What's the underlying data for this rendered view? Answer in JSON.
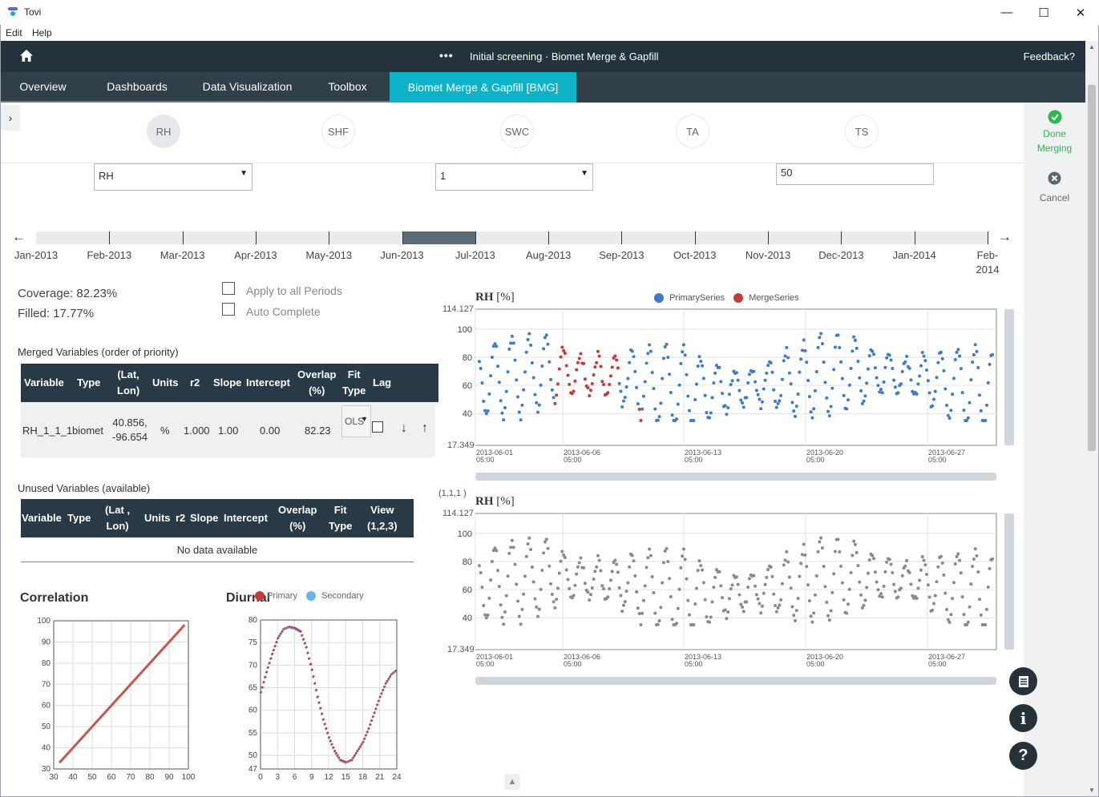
{
  "window": {
    "title": "Tovi",
    "minimize": "—",
    "maximize": "☐",
    "close": "✕"
  },
  "menu": {
    "items": [
      "Edit",
      "Help"
    ]
  },
  "topbar": {
    "dots": "•••",
    "title": "Initial screening · Biomet Merge & Gapfill",
    "feedback": "Feedback?"
  },
  "tabs": [
    "Overview",
    "Dashboards",
    "Data Visualization",
    "Toolbox",
    "Biomet Merge & Gapfill [BMG]"
  ],
  "active_tab": "Biomet Merge & Gapfill [BMG]",
  "variables": [
    "RH",
    "SHF",
    "SWC",
    "TA",
    "TS"
  ],
  "active_variable": "RH",
  "controls": {
    "variable_select": "RH",
    "period_select": "1",
    "window_input": "50"
  },
  "right_panel": {
    "done": "Done Merging",
    "cancel": "Cancel"
  },
  "timeline": {
    "months": [
      "Jan-2013",
      "Feb-2013",
      "Mar-2013",
      "Apr-2013",
      "May-2013",
      "Jun-2013",
      "Jul-2013",
      "Aug-2013",
      "Sep-2013",
      "Oct-2013",
      "Nov-2013",
      "Dec-2013",
      "Jan-2014",
      "Feb-\n2014"
    ],
    "selected": "Jun-2013"
  },
  "stats": {
    "coverage": "Coverage: 82.23%",
    "filled": "Filled: 17.77%"
  },
  "options": {
    "apply_all": "Apply to all Periods",
    "auto_complete": "Auto Complete"
  },
  "merged": {
    "title": "Merged Variables (order of priority)",
    "headers": [
      "Variable",
      "Type",
      "(Lat,\nLon)",
      "Units",
      "r2",
      "Slope",
      "Intercept",
      "Overlap\n(%)",
      "Fit\nType",
      "Lag"
    ],
    "row": {
      "variable": "RH_1_1_1",
      "type": "biomet",
      "latlon": "40.856,\n-96.654",
      "units": "%",
      "r2": "1.000",
      "slope": "1.00",
      "intercept": "0.00",
      "overlap": "82.23",
      "fit": "OLS"
    }
  },
  "unused": {
    "title": "Unused Variables (available)",
    "headers": [
      "Variable",
      "Type",
      "(Lat ,\nLon)",
      "Units",
      "r2",
      "Slope",
      "Intercept",
      "Overlap\n(%)",
      "Fit\nType",
      "View\n(1,2,3)"
    ],
    "empty": "No data available"
  },
  "correlation": {
    "title": "Correlation"
  },
  "diurnal": {
    "title": "Diurnal",
    "legend_primary": "Primary",
    "legend_secondary": "Secondary"
  },
  "ts_chart1": {
    "title": "RH",
    "unit": "[%]",
    "legend": [
      "PrimarySeries",
      "MergeSeries"
    ],
    "ymax": "114.127",
    "ymin": "17.349"
  },
  "ts_chart2": {
    "title": "RH",
    "unit": "[%]",
    "label": "(1,1,1 )",
    "ymax": "114.127",
    "ymin": "17.349"
  },
  "colors": {
    "primary": "#3d7cc9",
    "merge": "#c43b3b",
    "gray": "#8a8a8a",
    "accent": "#0fb3c9",
    "dark": "#25323b"
  },
  "chart_data": [
    {
      "type": "scatter",
      "title": "RH [%]",
      "ylim": [
        17.349,
        114.127
      ],
      "yticks": [
        40,
        60,
        80,
        100
      ],
      "xticks": [
        "2013-06-01\n05:00",
        "2013-06-06\n05:00",
        "2013-06-13\n05:00",
        "2013-06-20\n05:00",
        "2013-06-27\n05:00"
      ],
      "series": [
        {
          "name": "PrimarySeries",
          "color": "#3d7cc9"
        },
        {
          "name": "MergeSeries",
          "color": "#c43b3b"
        }
      ]
    },
    {
      "type": "scatter",
      "title": "RH [%]",
      "ylim": [
        17.349,
        114.127
      ],
      "yticks": [
        40,
        60,
        80,
        100
      ],
      "xticks": [
        "2013-06-01\n05:00",
        "2013-06-06\n05:00",
        "2013-06-13\n05:00",
        "2013-06-20\n05:00",
        "2013-06-27\n05:00"
      ]
    },
    {
      "type": "line",
      "title": "Correlation",
      "xlim": [
        30,
        100
      ],
      "ylim": [
        30,
        100
      ],
      "xticks": [
        30,
        40,
        50,
        60,
        70,
        80,
        90,
        100
      ],
      "yticks": [
        30,
        40,
        50,
        60,
        70,
        80,
        90,
        100
      ],
      "x": [
        33,
        98
      ],
      "y": [
        33,
        98
      ]
    },
    {
      "type": "scatter",
      "title": "Diurnal",
      "xlim": [
        0,
        24
      ],
      "ylim": [
        47,
        80
      ],
      "xticks": [
        0,
        3,
        6,
        9,
        12,
        15,
        18,
        21,
        24
      ],
      "yticks": [
        47,
        50,
        55,
        60,
        65,
        70,
        75,
        80
      ],
      "x": [
        0,
        1,
        2,
        3,
        4,
        5,
        6,
        7,
        8,
        9,
        10,
        11,
        12,
        13,
        14,
        15,
        16,
        17,
        18,
        19,
        20,
        21,
        22,
        23,
        24
      ],
      "y": [
        64,
        68.5,
        72.5,
        76,
        78,
        78.5,
        78.2,
        77.5,
        74,
        69,
        63,
        58,
        54,
        51,
        49,
        48.5,
        49,
        51,
        53,
        56,
        59.5,
        63,
        66,
        68,
        69
      ]
    }
  ]
}
